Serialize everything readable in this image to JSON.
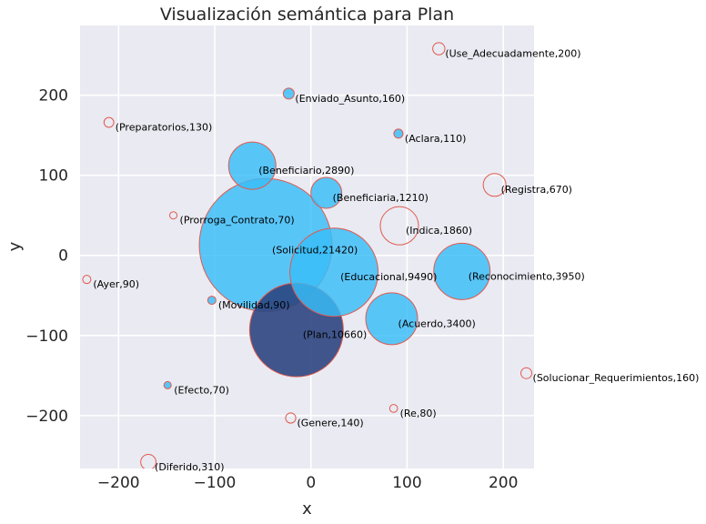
{
  "chart_data": {
    "type": "scatter",
    "title": "Visualización semántica para Plan",
    "xlabel": "x",
    "ylabel": "y",
    "xlim": [
      -240,
      232
    ],
    "ylim": [
      -266,
      287
    ],
    "xticks": [
      -200,
      -100,
      0,
      100,
      200
    ],
    "xtick_labels": [
      "−200",
      "−100",
      "0",
      "100",
      "200"
    ],
    "yticks": [
      -200,
      -100,
      0,
      100,
      200
    ],
    "ytick_labels": [
      "−200",
      "−100",
      "0",
      "100",
      "200"
    ],
    "grid": true,
    "colors": {
      "background": "#eaeaf2",
      "grid": "#ffffff",
      "filled": "#38bdf8",
      "focus": "#2c4580",
      "edge": "#e05a4e"
    },
    "points": [
      {
        "word": "Use_Adecuadamente",
        "value": 200,
        "x": 133,
        "y": 258,
        "r": 6.7,
        "style": "hollow"
      },
      {
        "word": "Enviado_Asunto",
        "value": 160,
        "x": -23,
        "y": 202,
        "r": 6,
        "style": "filled"
      },
      {
        "word": "Preparatorios",
        "value": 130,
        "x": -210,
        "y": 166,
        "r": 5.4,
        "style": "hollow"
      },
      {
        "word": "Aclara",
        "value": 110,
        "x": 91,
        "y": 152,
        "r": 5,
        "style": "filled"
      },
      {
        "word": "Beneficiario",
        "value": 2890,
        "x": -61,
        "y": 112,
        "r": 26,
        "style": "filled"
      },
      {
        "word": "Registra",
        "value": 670,
        "x": 191,
        "y": 88,
        "r": 12.5,
        "style": "hollow"
      },
      {
        "word": "Beneficiaria",
        "value": 1210,
        "x": 16,
        "y": 78,
        "r": 17,
        "style": "filled"
      },
      {
        "word": "Prorroga_Contrato",
        "value": 70,
        "x": -143,
        "y": 50,
        "r": 4,
        "style": "hollow"
      },
      {
        "word": "Indica",
        "value": 1860,
        "x": 92,
        "y": 37,
        "r": 21,
        "style": "hollow"
      },
      {
        "word": "Solicitud",
        "value": 21420,
        "x": -47,
        "y": 13,
        "r": 73,
        "style": "filled"
      },
      {
        "word": "Educacional",
        "value": 9490,
        "x": 24,
        "y": -21,
        "r": 48.5,
        "style": "filled"
      },
      {
        "word": "Reconocimiento",
        "value": 3950,
        "x": 157,
        "y": -20,
        "r": 31,
        "style": "filled"
      },
      {
        "word": "Ayer",
        "value": 90,
        "x": -233,
        "y": -30,
        "r": 4.5,
        "style": "hollow"
      },
      {
        "word": "Movilidad",
        "value": 90,
        "x": -103,
        "y": -56,
        "r": 4.5,
        "style": "filled"
      },
      {
        "word": "Acuerdo",
        "value": 3400,
        "x": 84,
        "y": -79,
        "r": 28.5,
        "style": "filled"
      },
      {
        "word": "Plan",
        "value": 10660,
        "x": -15,
        "y": -93,
        "r": 51.5,
        "style": "focus"
      },
      {
        "word": "Solucionar_Requerimientos",
        "value": 160,
        "x": 224,
        "y": -147,
        "r": 6,
        "style": "hollow"
      },
      {
        "word": "Efecto",
        "value": 70,
        "x": -149,
        "y": -162,
        "r": 4,
        "style": "filled"
      },
      {
        "word": "Re",
        "value": 80,
        "x": 86,
        "y": -191,
        "r": 4.3,
        "style": "hollow"
      },
      {
        "word": "Genere",
        "value": 140,
        "x": -21,
        "y": -203,
        "r": 5.6,
        "style": "hollow"
      },
      {
        "word": "Diferido",
        "value": 310,
        "x": -169,
        "y": -258,
        "r": 8.4,
        "style": "hollow"
      }
    ]
  }
}
